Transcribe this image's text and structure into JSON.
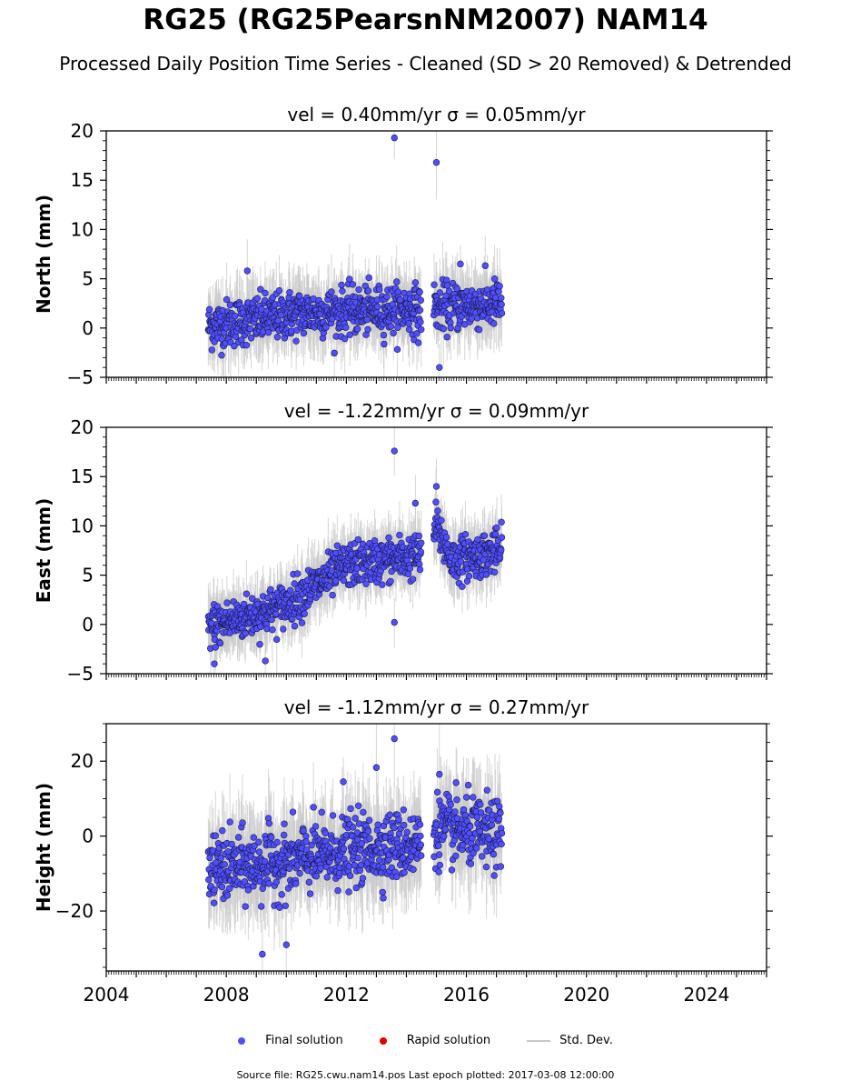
{
  "title": "RG25 (RG25PearsnNM2007) NAM14",
  "subtitle": "Processed Daily Position Time Series - Cleaned (SD > 20 Removed) & Detrended",
  "legend": {
    "final": "Final solution",
    "rapid": "Rapid solution",
    "std": "Std. Dev."
  },
  "footer": "Source file: RG25.cwu.nam14.pos  Last epoch plotted: 2017-03-08 12:00:00",
  "colors": {
    "final": "#4f4fff",
    "rapid": "#e00000",
    "std": "#c8c8c8"
  },
  "chart_data": [
    {
      "type": "scatter",
      "title": "vel = 0.40mm/yr   σ = 0.05mm/yr",
      "ylabel": "North (mm)",
      "xlim": [
        2004,
        2026
      ],
      "ylim": [
        -5,
        20
      ],
      "yticks": [
        -5,
        0,
        5,
        10,
        15,
        20
      ],
      "x_start": 2007.4,
      "x_end": 2017.18,
      "gaps": [
        [
          2014.5,
          2014.9
        ]
      ],
      "trend": [
        [
          2007.4,
          0.2
        ],
        [
          2010.5,
          1.5
        ],
        [
          2014.5,
          2.0
        ],
        [
          2017.18,
          2.5
        ]
      ],
      "scatter_sd": 1.2,
      "outliers": [
        [
          2013.6,
          19.3
        ],
        [
          2015.0,
          16.8
        ],
        [
          2008.7,
          5.8
        ],
        [
          2015.1,
          -4.0
        ],
        [
          2014.4,
          -1.5
        ],
        [
          2015.8,
          6.5
        ]
      ]
    },
    {
      "type": "scatter",
      "title": "vel = -1.22mm/yr   σ = 0.09mm/yr",
      "ylabel": "East (mm)",
      "xlim": [
        2004,
        2026
      ],
      "ylim": [
        -5,
        20
      ],
      "yticks": [
        -5,
        0,
        5,
        10,
        15,
        20
      ],
      "x_start": 2007.4,
      "x_end": 2017.18,
      "gaps": [
        [
          2014.5,
          2014.9
        ]
      ],
      "trend": [
        [
          2007.4,
          -0.2
        ],
        [
          2009.0,
          1.0
        ],
        [
          2010.0,
          2.0
        ],
        [
          2012.0,
          6.0
        ],
        [
          2014.5,
          7.0
        ],
        [
          2015.0,
          10.0
        ],
        [
          2015.5,
          6.5
        ],
        [
          2017.18,
          7.5
        ]
      ],
      "scatter_sd": 1.1,
      "outliers": [
        [
          2013.6,
          17.6
        ],
        [
          2015.0,
          14.0
        ],
        [
          2013.6,
          0.2
        ],
        [
          2014.3,
          12.3
        ],
        [
          2009.3,
          -3.7
        ],
        [
          2007.6,
          -4.0
        ]
      ]
    },
    {
      "type": "scatter",
      "title": "vel = -1.12mm/yr   σ = 0.27mm/yr",
      "ylabel": "Height (mm)",
      "xlim": [
        2004,
        2026
      ],
      "ylim": [
        -36,
        30
      ],
      "yticks": [
        -20,
        0,
        20
      ],
      "x_start": 2007.4,
      "x_end": 2017.18,
      "gaps": [
        [
          2014.5,
          2014.9
        ]
      ],
      "trend": [
        [
          2007.4,
          -9
        ],
        [
          2010.0,
          -7
        ],
        [
          2012.0,
          -4
        ],
        [
          2014.5,
          -2
        ],
        [
          2015.0,
          2
        ],
        [
          2017.18,
          0
        ]
      ],
      "scatter_sd": 4.5,
      "outliers": [
        [
          2013.6,
          26.0
        ],
        [
          2009.2,
          -31.5
        ],
        [
          2010.0,
          -29.0
        ],
        [
          2013.0,
          18.3
        ],
        [
          2015.1,
          16.5
        ],
        [
          2011.9,
          14.5
        ]
      ]
    }
  ],
  "xaxis": {
    "ticks": [
      2004,
      2008,
      2012,
      2016,
      2020,
      2024
    ]
  }
}
